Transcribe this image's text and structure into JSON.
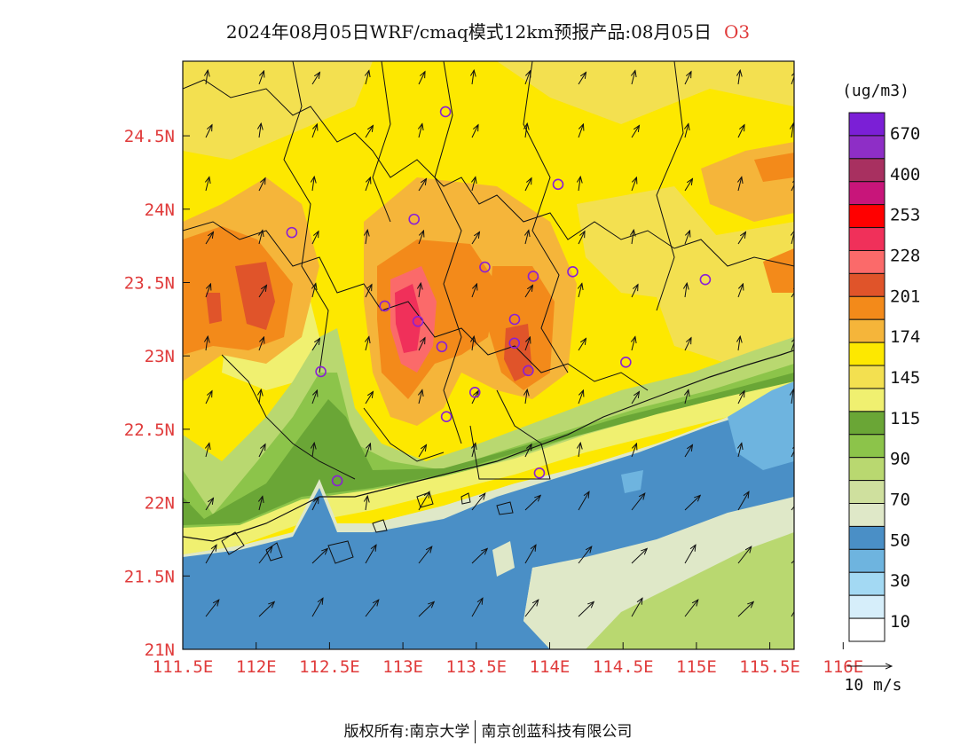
{
  "title": {
    "text": "2024年08月05日WRF/cmaq模式12km预报产品:08月05日",
    "species": "O3"
  },
  "map": {
    "lon_ticks": [
      "111.5E",
      "112E",
      "112.5E",
      "113E",
      "113.5E",
      "114E",
      "114.5E",
      "115E",
      "115.5E",
      "116E"
    ],
    "lat_ticks": [
      "21N",
      "21.5N",
      "22N",
      "22.5N",
      "23N",
      "23.5N",
      "24N",
      "24.5N"
    ],
    "stations": 20,
    "wind_direction": "southerly to southwesterly, stronger over sea"
  },
  "legend": {
    "unit": "(ug/m3)",
    "colors": [
      "#ffffff",
      "#d6eefa",
      "#a3d9f3",
      "#6eb4df",
      "#4a8fc6",
      "#dfe8c8",
      "#cfe09e",
      "#b9d870",
      "#8cc44a",
      "#6aa636",
      "#f0f070",
      "#f3e050",
      "#fde800",
      "#f5b53a",
      "#f38a1a",
      "#e0542a",
      "#fb6a6a",
      "#f0305a",
      "#ff0000",
      "#c8157a",
      "#a83060",
      "#8e2ec6",
      "#7b1fd6"
    ],
    "labels": [
      "10",
      "30",
      "50",
      "70",
      "90",
      "115",
      "145",
      "174",
      "201",
      "228",
      "253",
      "400",
      "670"
    ]
  },
  "wind_scale": {
    "label": "10 m/s"
  },
  "copyright": {
    "left": "版权所有:南京大学",
    "right": "南京创蓝科技有限公司"
  },
  "axis_color": "#e03b3b"
}
